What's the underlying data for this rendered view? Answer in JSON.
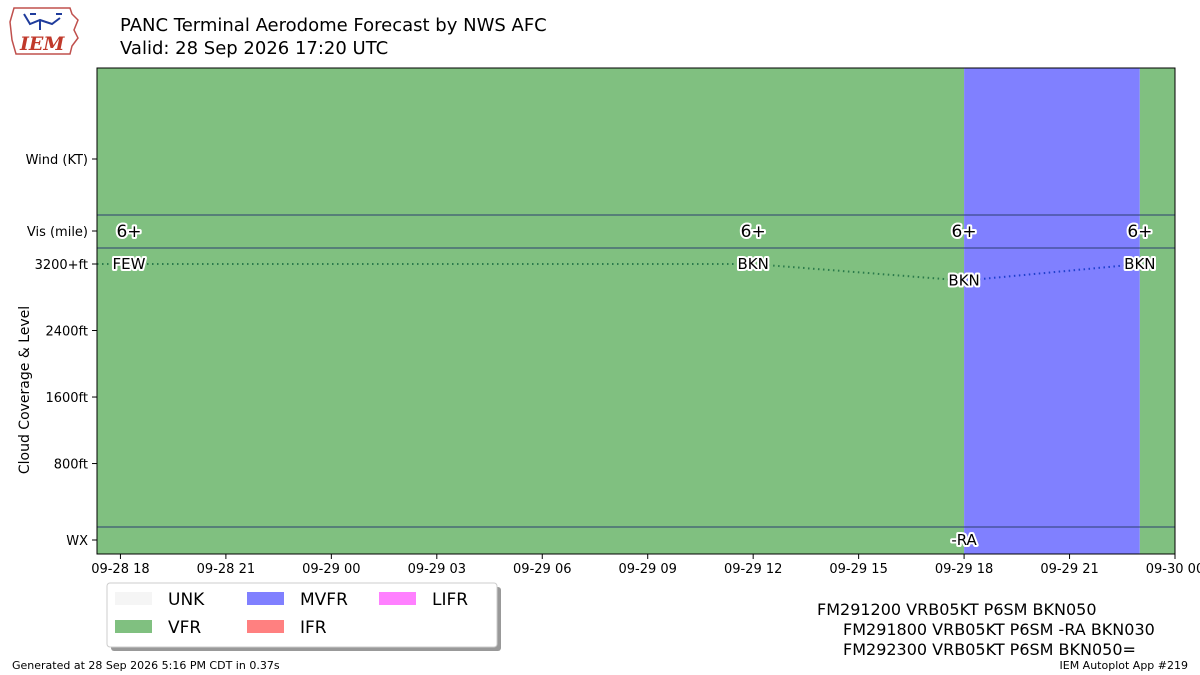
{
  "header": {
    "title": "PANC Terminal Aerodome Forecast by NWS AFC",
    "subtitle": "Valid: 28 Sep 2026 17:20 UTC",
    "logo_text": "IEM"
  },
  "colors": {
    "UNK": "#f5f5f5",
    "VFR": "#80c080",
    "MVFR": "#8080ff",
    "IFR": "#ff8080",
    "LIFR": "#ff80ff"
  },
  "chart_data": {
    "type": "area",
    "x_range": [
      "2026-09-28 17:20",
      "2026-09-30 00:00"
    ],
    "x_ticks": [
      "09-28 18",
      "09-28 21",
      "09-29 00",
      "09-29 03",
      "09-29 06",
      "09-29 09",
      "09-29 12",
      "09-29 15",
      "09-29 18",
      "09-29 21",
      "09-30 00"
    ],
    "x_tick_times": [
      "2026-09-28 18:00",
      "2026-09-28 21:00",
      "2026-09-29 00:00",
      "2026-09-29 03:00",
      "2026-09-29 06:00",
      "2026-09-29 09:00",
      "2026-09-29 12:00",
      "2026-09-29 15:00",
      "2026-09-29 18:00",
      "2026-09-29 21:00",
      "2026-09-30 00:00"
    ],
    "rows": [
      "Wind (KT)",
      "Vis (mile)",
      "3200+ft",
      "2400ft",
      "1600ft",
      "800ft",
      "WX"
    ],
    "cloud_ticks": [
      {
        "label": "3200+ft",
        "value": 3200
      },
      {
        "label": "2400ft",
        "value": 2400
      },
      {
        "label": "1600ft",
        "value": 1600
      },
      {
        "label": "800ft",
        "value": 800
      }
    ],
    "cloud_range": [
      -300,
      3200
    ],
    "ylabel": "Cloud Coverage & Level",
    "periods": [
      {
        "start": "2026-09-28 17:20",
        "end": "2026-09-29 18:00",
        "category": "VFR"
      },
      {
        "start": "2026-09-29 18:00",
        "end": "2026-09-29 23:00",
        "category": "MVFR"
      },
      {
        "start": "2026-09-29 23:00",
        "end": "2026-09-30 00:00",
        "category": "VFR"
      }
    ],
    "forecasts": [
      {
        "time": "2026-09-28 17:20",
        "vis": "6+",
        "cloud": "FEW",
        "level": 3200,
        "wx": ""
      },
      {
        "time": "2026-09-29 12:00",
        "vis": "6+",
        "cloud": "BKN",
        "level": 3200,
        "wx": ""
      },
      {
        "time": "2026-09-29 18:00",
        "vis": "6+",
        "cloud": "BKN",
        "level": 3000,
        "wx": "-RA"
      },
      {
        "time": "2026-09-29 23:00",
        "vis": "6+",
        "cloud": "BKN",
        "level": 3200,
        "wx": ""
      }
    ]
  },
  "legend": {
    "items": [
      {
        "label": "UNK",
        "key": "UNK"
      },
      {
        "label": "MVFR",
        "key": "MVFR"
      },
      {
        "label": "LIFR",
        "key": "LIFR"
      },
      {
        "label": "VFR",
        "key": "VFR"
      },
      {
        "label": "IFR",
        "key": "IFR"
      }
    ]
  },
  "taf_text": [
    "FM291200 VRB05KT P6SM BKN050",
    "FM291800 VRB05KT P6SM -RA BKN030",
    "FM292300 VRB05KT P6SM BKN050="
  ],
  "footer": {
    "generated": "Generated at 28 Sep 2026 5:16 PM CDT in 0.37s",
    "app": "IEM Autoplot App #219"
  }
}
